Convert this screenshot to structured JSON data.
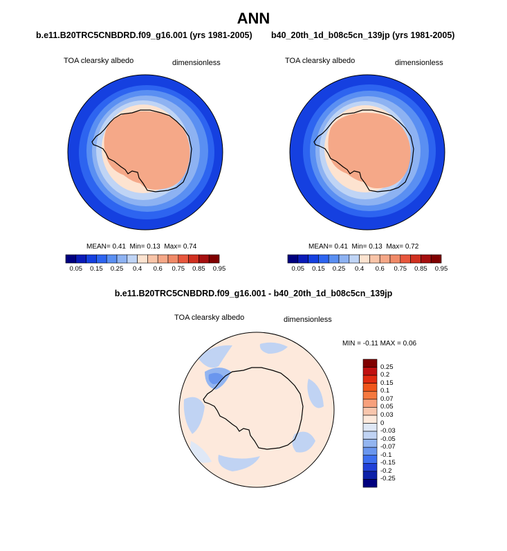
{
  "title": "ANN",
  "colors": {
    "abs_levels": [
      "#00007f",
      "#0a1bb8",
      "#1540e0",
      "#2d64f0",
      "#5a8ff2",
      "#8db2f2",
      "#bfd4f5",
      "#fde3d0",
      "#f8c4a8",
      "#f5a888",
      "#f08a68",
      "#e8573d",
      "#d03020",
      "#a50f0f",
      "#7f0000"
    ],
    "diff_levels": [
      "#7f0000",
      "#c01010",
      "#e02a10",
      "#f0551a",
      "#f5793f",
      "#f7a07c",
      "#f8c6ad",
      "#fde9dc",
      "#dfe8f6",
      "#c0d3f3",
      "#93b5f0",
      "#6a96ee",
      "#3d6ff0",
      "#2040d8",
      "#0c20a8",
      "#00007f"
    ],
    "land_outline": "#000000"
  },
  "panels": [
    {
      "id": "test",
      "case_title": "b.e11.B20TRC5CNBDRD.f09_g16.001 (yrs 1981-2005)",
      "variable": "TOA clearsky albedo",
      "units": "dimensionless",
      "stats": {
        "mean_label": "MEAN=",
        "mean": "0.41",
        "min_label": "Min=",
        "min": "0.13",
        "max_label": "Max=",
        "max": "0.74"
      }
    },
    {
      "id": "control",
      "case_title": "b40_20th_1d_b08c5cn_139jp (yrs 1981-2005)",
      "variable": "TOA clearsky albedo",
      "units": "dimensionless",
      "stats": {
        "mean_label": "MEAN=",
        "mean": "0.41",
        "min_label": "Min=",
        "min": "0.13",
        "max_label": "Max=",
        "max": "0.72"
      }
    }
  ],
  "abs_colorbar_labels": [
    "0.05",
    "0.15",
    "0.25",
    "0.4",
    "0.6",
    "0.75",
    "0.85",
    "0.95"
  ],
  "diff_panel": {
    "title": "b.e11.B20TRC5CNBDRD.f09_g16.001 - b40_20th_1d_b08c5cn_139jp",
    "variable": "TOA clearsky albedo",
    "units": "dimensionless",
    "minmax": {
      "min_label": "MIN =",
      "min": "-0.11",
      "max_label": "MAX =",
      "max": "0.06"
    },
    "colorbar_labels": [
      "0.25",
      "0.2",
      "0.15",
      "0.1",
      "0.07",
      "0.05",
      "0.03",
      "0",
      "-0.03",
      "-0.05",
      "-0.07",
      "-0.1",
      "-0.15",
      "-0.2",
      "-0.25"
    ]
  }
}
